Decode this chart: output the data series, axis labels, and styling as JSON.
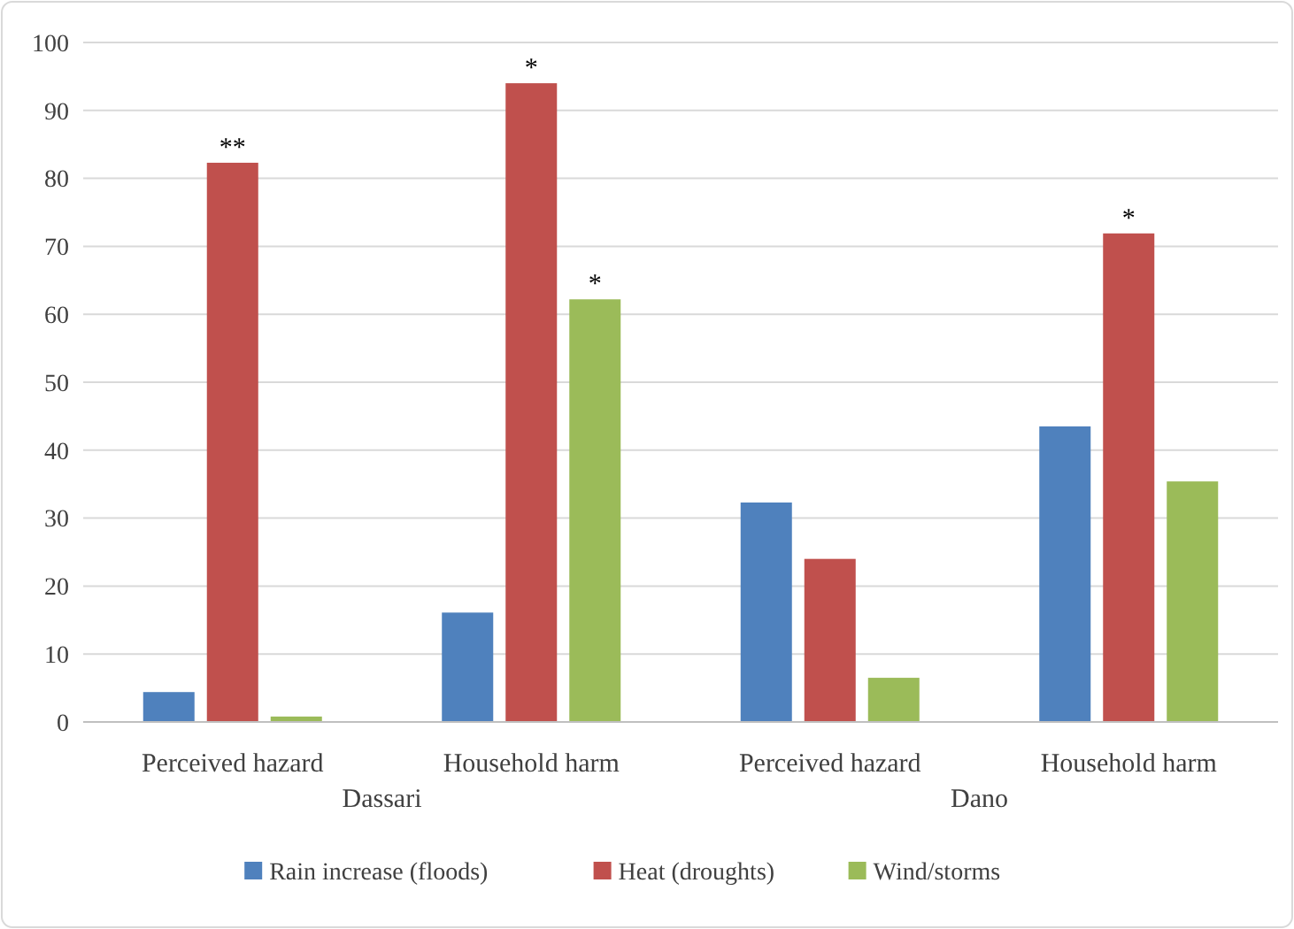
{
  "chart_data": {
    "type": "bar",
    "categories": [
      "Perceived hazard",
      "Household harm",
      "Perceived hazard",
      "Household harm"
    ],
    "series": [
      {
        "name": "Rain increase (floods)",
        "color": "#4f81bd",
        "values": [
          4.4,
          16.1,
          32.3,
          43.5
        ]
      },
      {
        "name": "Heat (droughts)",
        "color": "#c0504d",
        "values": [
          82.3,
          94,
          24,
          71.9
        ]
      },
      {
        "name": "Wind/storms",
        "color": "#9bbb59",
        "values": [
          0.8,
          62.2,
          6.5,
          35.4
        ]
      }
    ],
    "ylim": [
      0,
      100
    ],
    "yticks": [
      0,
      10,
      20,
      30,
      40,
      50,
      60,
      70,
      80,
      90,
      100
    ],
    "grid": "y",
    "legend": "bottom",
    "annotations": [
      {
        "text": "**",
        "y": 82.3
      },
      {
        "text": "*",
        "y": 94
      },
      {
        "text": "*",
        "y": 62.2
      },
      {
        "text": "*",
        "y": 71.9
      },
      "Dassari",
      "Dano"
    ]
  }
}
